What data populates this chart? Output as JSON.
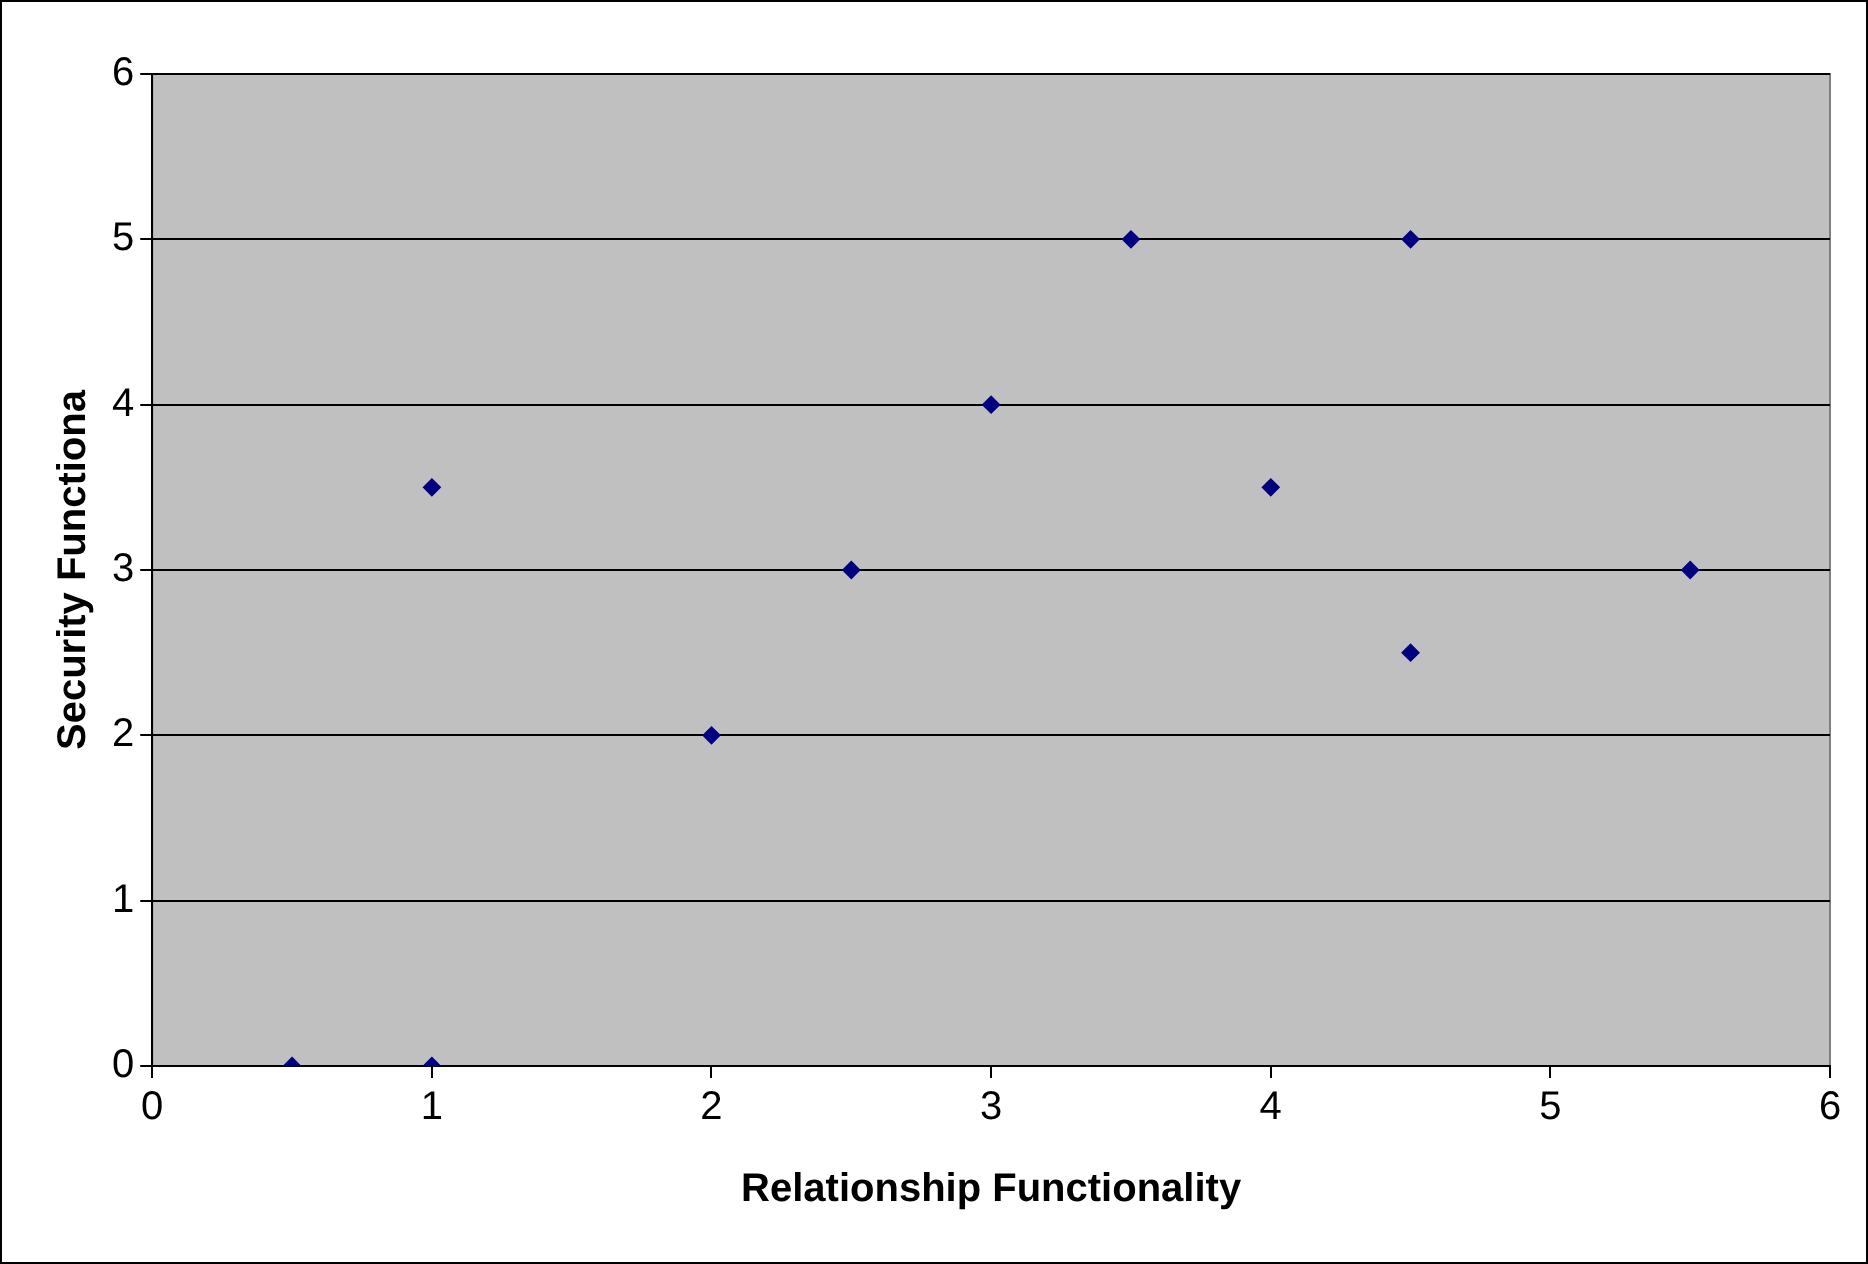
{
  "chart_data": {
    "type": "scatter",
    "xlabel": "Relationship Functionality",
    "ylabel": "Security Functiona",
    "x": [
      0.5,
      1,
      1,
      2,
      2.5,
      3,
      3.5,
      4,
      4.5,
      4.5,
      5.5
    ],
    "series": [
      {
        "color": "#000080",
        "values": [
          0,
          0,
          3.5,
          2,
          3,
          4,
          5,
          3.5,
          5,
          2.5,
          3
        ]
      }
    ],
    "xlim": [
      0,
      6
    ],
    "ylim": [
      0,
      6
    ],
    "xticks": [
      0,
      1,
      2,
      3,
      4,
      5,
      6
    ],
    "yticks": [
      0,
      1,
      2,
      3,
      4,
      5,
      6
    ],
    "grid": "y",
    "legend": false,
    "marker": "diamond"
  }
}
